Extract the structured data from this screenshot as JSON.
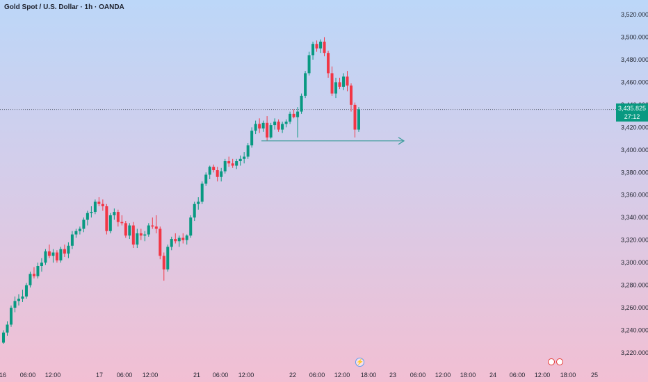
{
  "header": {
    "title": "Gold Spot / U.S. Dollar · 1h · OANDA"
  },
  "current_price": {
    "value": "3,435.825",
    "countdown": "27:12",
    "color": "#089981"
  },
  "colors": {
    "up": "#089981",
    "down": "#f23645",
    "arrow": "#3a9c9a",
    "grid": "#b6bfcc"
  },
  "icons": {
    "events": "economic-event-icon",
    "flash": "flash-icon"
  },
  "chart_data": {
    "type": "candlestick",
    "title": "Gold Spot / U.S. Dollar · 1h · OANDA",
    "ylim": [
      3206,
      3532
    ],
    "y_ticks": [
      "3,520.000",
      "3,500.000",
      "3,480.000",
      "3,460.000",
      "3,440.000",
      "3,420.000",
      "3,400.000",
      "3,380.000",
      "3,360.000",
      "3,340.000",
      "3,320.000",
      "3,300.000",
      "3,280.000",
      "3,260.000",
      "3,240.000",
      "3,220.000"
    ],
    "x_ticks": [
      "16",
      "06:00",
      "12:00",
      "17",
      "06:00",
      "12:00",
      "21",
      "06:00",
      "12:00",
      "22",
      "06:00",
      "12:00",
      "18:00",
      "23",
      "06:00",
      "12:00",
      "18:00",
      "24",
      "06:00",
      "12:00",
      "18:00",
      "25"
    ],
    "current_price": 3435.825,
    "ohlc": [
      [
        3229,
        3240,
        3228,
        3238
      ],
      [
        3238,
        3248,
        3235,
        3245
      ],
      [
        3245,
        3262,
        3243,
        3260
      ],
      [
        3260,
        3270,
        3256,
        3266
      ],
      [
        3266,
        3272,
        3262,
        3268
      ],
      [
        3268,
        3276,
        3265,
        3270
      ],
      [
        3270,
        3282,
        3268,
        3280
      ],
      [
        3280,
        3292,
        3278,
        3290
      ],
      [
        3290,
        3296,
        3286,
        3288
      ],
      [
        3288,
        3300,
        3286,
        3297
      ],
      [
        3297,
        3304,
        3292,
        3300
      ],
      [
        3300,
        3312,
        3298,
        3310
      ],
      [
        3310,
        3316,
        3304,
        3306
      ],
      [
        3306,
        3312,
        3300,
        3309
      ],
      [
        3309,
        3311,
        3300,
        3302
      ],
      [
        3302,
        3314,
        3300,
        3312
      ],
      [
        3312,
        3316,
        3305,
        3308
      ],
      [
        3308,
        3318,
        3304,
        3315
      ],
      [
        3315,
        3328,
        3312,
        3325
      ],
      [
        3325,
        3330,
        3322,
        3328
      ],
      [
        3328,
        3332,
        3325,
        3330
      ],
      [
        3330,
        3340,
        3327,
        3338
      ],
      [
        3338,
        3346,
        3333,
        3344
      ],
      [
        3344,
        3350,
        3340,
        3345
      ],
      [
        3345,
        3356,
        3343,
        3354
      ],
      [
        3354,
        3358,
        3350,
        3352
      ],
      [
        3352,
        3356,
        3346,
        3350
      ],
      [
        3350,
        3352,
        3325,
        3328
      ],
      [
        3328,
        3344,
        3326,
        3342
      ],
      [
        3342,
        3348,
        3338,
        3345
      ],
      [
        3345,
        3347,
        3332,
        3336
      ],
      [
        3336,
        3342,
        3333,
        3335
      ],
      [
        3335,
        3337,
        3322,
        3324
      ],
      [
        3324,
        3335,
        3321,
        3333
      ],
      [
        3333,
        3336,
        3313,
        3316
      ],
      [
        3316,
        3330,
        3313,
        3326
      ],
      [
        3326,
        3330,
        3320,
        3324
      ],
      [
        3324,
        3328,
        3319,
        3325
      ],
      [
        3325,
        3335,
        3323,
        3333
      ],
      [
        3333,
        3340,
        3330,
        3332
      ],
      [
        3332,
        3342,
        3326,
        3330
      ],
      [
        3330,
        3332,
        3303,
        3306
      ],
      [
        3306,
        3309,
        3284,
        3294
      ],
      [
        3294,
        3316,
        3292,
        3314
      ],
      [
        3314,
        3323,
        3311,
        3321
      ],
      [
        3321,
        3326,
        3317,
        3319
      ],
      [
        3319,
        3324,
        3314,
        3322
      ],
      [
        3322,
        3326,
        3317,
        3320
      ],
      [
        3320,
        3325,
        3316,
        3324
      ],
      [
        3324,
        3342,
        3322,
        3340
      ],
      [
        3340,
        3354,
        3337,
        3352
      ],
      [
        3352,
        3358,
        3347,
        3354
      ],
      [
        3354,
        3372,
        3352,
        3370
      ],
      [
        3370,
        3380,
        3368,
        3378
      ],
      [
        3378,
        3386,
        3374,
        3385
      ],
      [
        3385,
        3387,
        3380,
        3382
      ],
      [
        3382,
        3385,
        3372,
        3376
      ],
      [
        3376,
        3384,
        3372,
        3381
      ],
      [
        3381,
        3392,
        3379,
        3390
      ],
      [
        3390,
        3394,
        3385,
        3388
      ],
      [
        3388,
        3392,
        3384,
        3386
      ],
      [
        3386,
        3392,
        3383,
        3390
      ],
      [
        3390,
        3395,
        3386,
        3392
      ],
      [
        3392,
        3398,
        3388,
        3394
      ],
      [
        3394,
        3406,
        3392,
        3404
      ],
      [
        3404,
        3420,
        3402,
        3417
      ],
      [
        3417,
        3426,
        3414,
        3423
      ],
      [
        3423,
        3428,
        3415,
        3419
      ],
      [
        3419,
        3426,
        3416,
        3424
      ],
      [
        3424,
        3430,
        3408,
        3411
      ],
      [
        3411,
        3424,
        3410,
        3422
      ],
      [
        3422,
        3428,
        3418,
        3425
      ],
      [
        3425,
        3427,
        3416,
        3418
      ],
      [
        3418,
        3425,
        3415,
        3423
      ],
      [
        3423,
        3427,
        3420,
        3425
      ],
      [
        3425,
        3434,
        3423,
        3432
      ],
      [
        3432,
        3436,
        3428,
        3429
      ],
      [
        3429,
        3438,
        3411,
        3434
      ],
      [
        3434,
        3450,
        3432,
        3448
      ],
      [
        3448,
        3470,
        3446,
        3468
      ],
      [
        3468,
        3487,
        3466,
        3484
      ],
      [
        3484,
        3496,
        3480,
        3494
      ],
      [
        3494,
        3497,
        3487,
        3490
      ],
      [
        3490,
        3498,
        3486,
        3496
      ],
      [
        3496,
        3500,
        3483,
        3486
      ],
      [
        3486,
        3488,
        3464,
        3468
      ],
      [
        3468,
        3474,
        3448,
        3450
      ],
      [
        3450,
        3464,
        3446,
        3460
      ],
      [
        3460,
        3464,
        3454,
        3456
      ],
      [
        3456,
        3468,
        3453,
        3465
      ],
      [
        3465,
        3470,
        3452,
        3457
      ],
      [
        3457,
        3459,
        3434,
        3440
      ],
      [
        3440,
        3442,
        3411,
        3418
      ],
      [
        3418,
        3438,
        3416,
        3436
      ]
    ],
    "annotation": {
      "type": "horizontal-ray",
      "price": 3408
    }
  }
}
